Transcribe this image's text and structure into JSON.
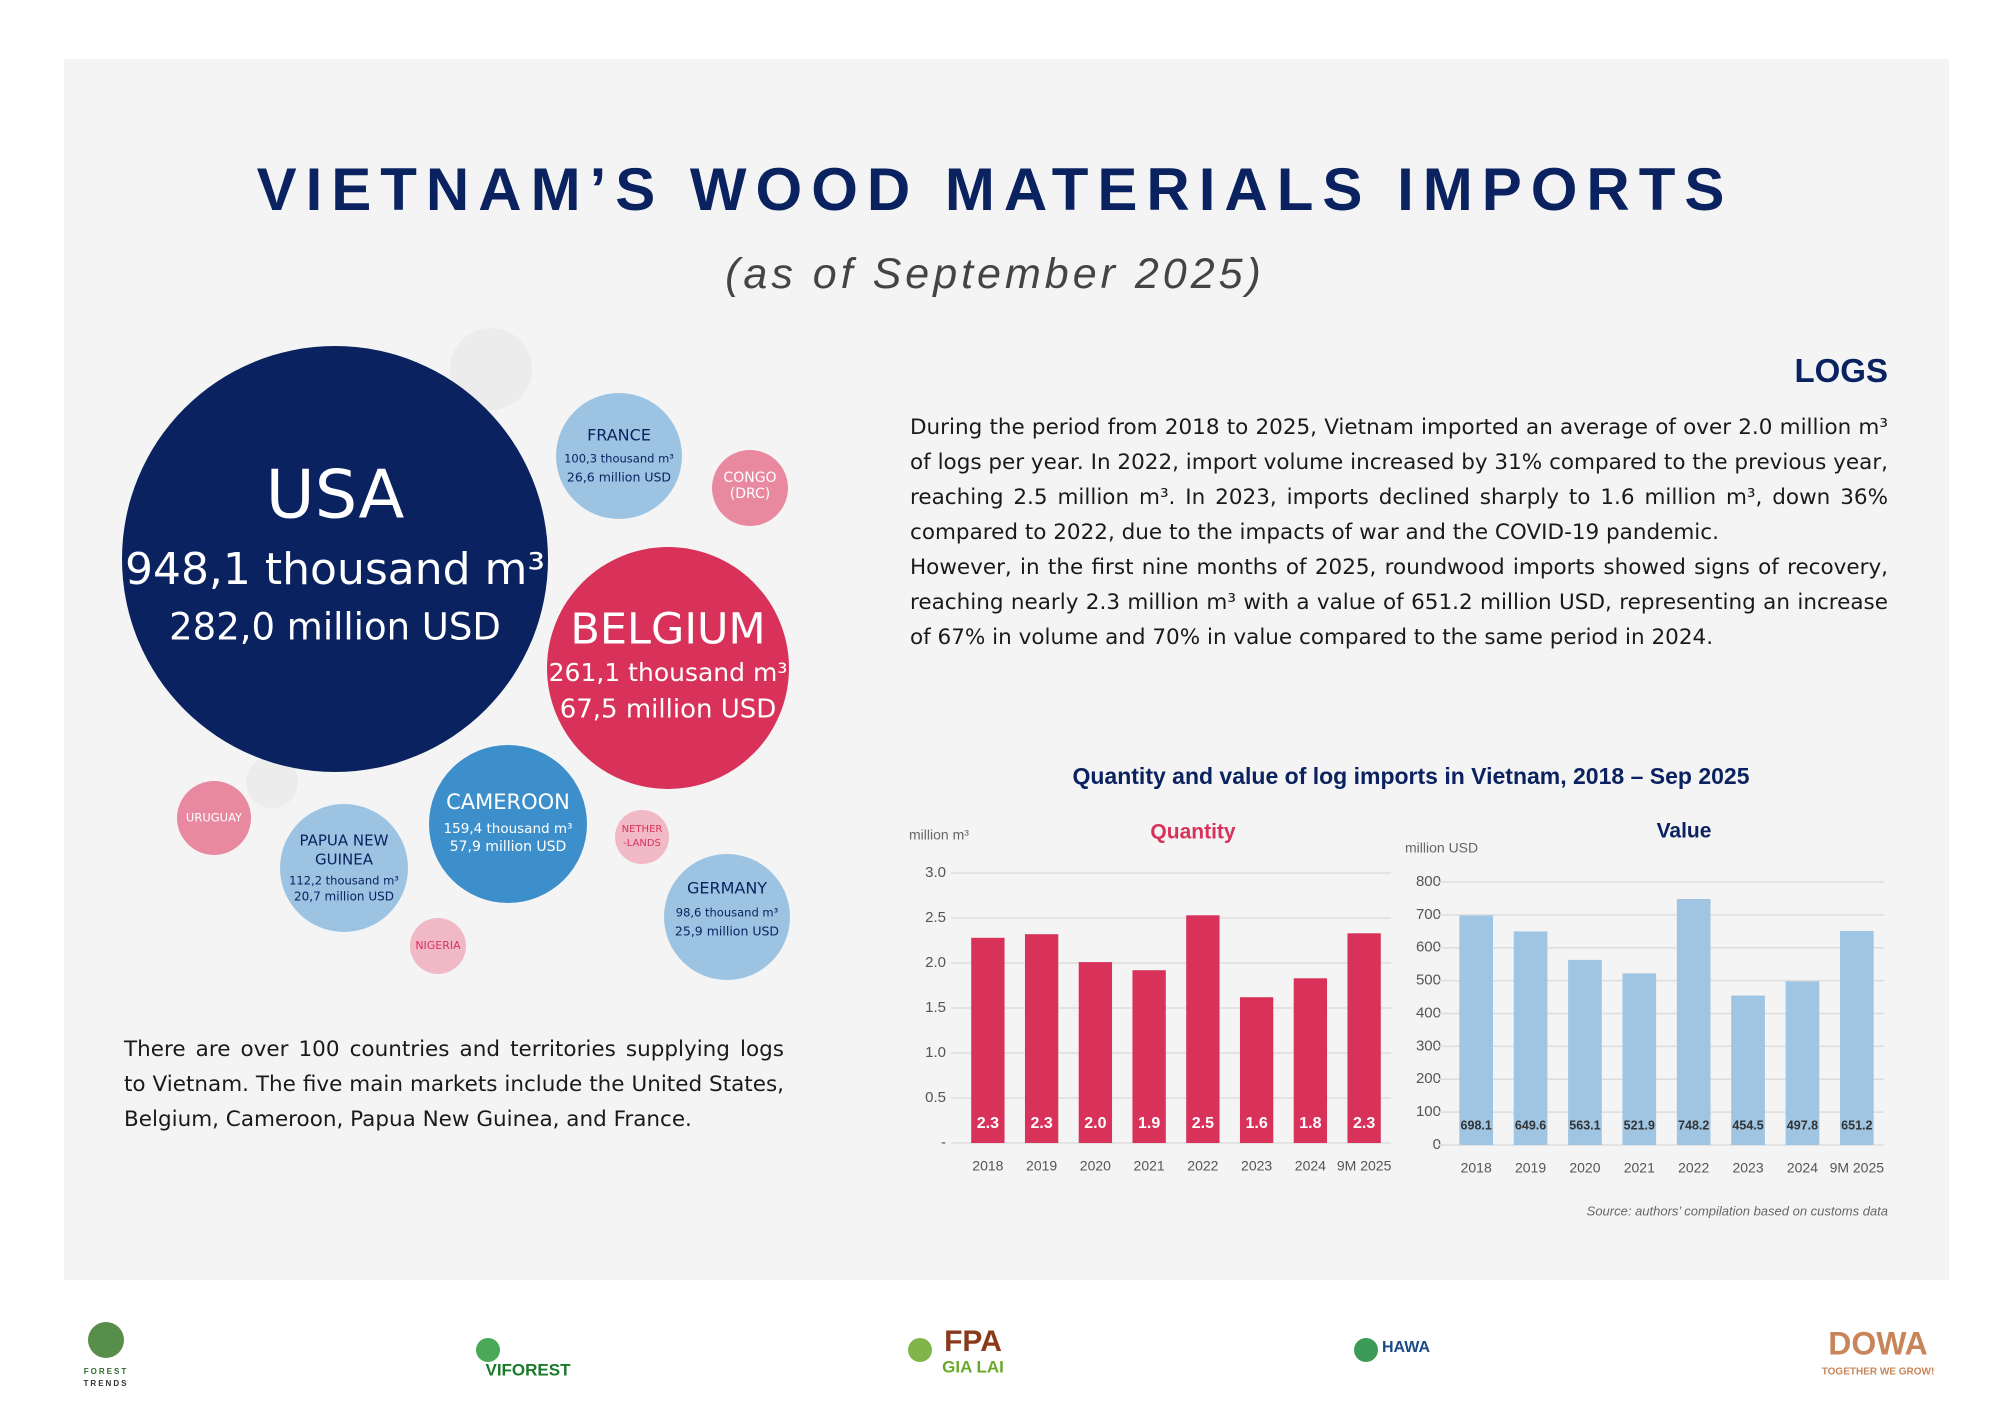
{
  "header": {
    "title": "VIETNAM’S WOOD MATERIALS IMPORTS",
    "subtitle": "(as of September 2025)"
  },
  "bubbles": [
    {
      "lines": [
        "USA",
        "948,1 thousand m³",
        "282,0 million USD"
      ]
    },
    {
      "lines": [
        "BELGIUM",
        "261,1 thousand m³",
        "67,5 million USD"
      ]
    },
    {
      "lines": [
        "FRANCE",
        "100,3 thousand m³",
        "26,6 million USD"
      ]
    },
    {
      "lines": [
        "CONGO",
        "(DRC)"
      ]
    },
    {
      "lines": [
        "CAMEROON",
        "159,4 thousand m³",
        "57,9 million USD"
      ]
    },
    {
      "lines": [
        "PAPUA NEW",
        "GUINEA",
        "112,2 thousand m³",
        "20,7 million USD"
      ]
    },
    {
      "lines": [
        "URUGUAY"
      ]
    },
    {
      "lines": [
        "NIGERIA"
      ]
    },
    {
      "lines": [
        "NETHER",
        "-LANDS"
      ]
    },
    {
      "lines": [
        "GERMANY",
        "98,6 thousand m³",
        "25,9 million USD"
      ]
    }
  ],
  "market_note": "There are over 100 countries and territories supplying logs to Vietnam. The five main markets include the United States, Belgium, Cameroon, Papua New Guinea, and France.",
  "logs": {
    "heading": "LOGS",
    "paragraphs": [
      "During the period from 2018 to 2025, Vietnam imported an average of over 2.0 million m³ of logs per year. In 2022, import volume increased by 31% compared to the previous year, reaching 2.5 million m³. In 2023, imports declined sharply to 1.6 million m³, down 36% compared to 2022, due to the impacts of war and the COVID-19 pandemic.",
      "However, in the first nine months of 2025, roundwood imports showed signs of recovery, reaching nearly 2.3 million m³ with a value of 651.2 million USD, representing an increase of 67% in volume and 70% in value compared to the same period in 2024."
    ]
  },
  "charts_heading": "Quantity and value of log imports in Vietnam, 2018 – Sep 2025",
  "chart_data": [
    {
      "type": "bar",
      "title": "Quantity",
      "y_label": "million m³",
      "categories": [
        "2018",
        "2019",
        "2020",
        "2021",
        "2022",
        "2023",
        "2024",
        "9M 2025"
      ],
      "values": [
        2.28,
        2.32,
        2.01,
        1.92,
        2.53,
        1.62,
        1.83,
        2.33
      ],
      "value_labels": [
        "2.3",
        "2.3",
        "2.0",
        "1.9",
        "2.5",
        "1.6",
        "1.8",
        "2.3"
      ],
      "color": "#d9325a",
      "ylim": [
        0,
        3
      ],
      "yticks": [
        {
          "value": 0,
          "label": "-"
        },
        0.5,
        {
          "value": 1,
          "label": "1.0"
        },
        1.5,
        {
          "value": 2,
          "label": "2.0"
        },
        2.5,
        {
          "value": 3,
          "label": "3.0"
        }
      ],
      "grid": true
    },
    {
      "type": "bar",
      "title": "Value",
      "y_label": "million USD",
      "categories": [
        "2018",
        "2019",
        "2020",
        "2021",
        "2022",
        "2023",
        "2024",
        "9M 2025"
      ],
      "values": [
        698.1,
        649.6,
        563.1,
        521.9,
        748.2,
        454.5,
        497.8,
        651.2
      ],
      "color": "#9fc5e3",
      "ylim": [
        0,
        800
      ],
      "yticks": [
        0,
        100,
        200,
        300,
        400,
        500,
        600,
        700,
        800
      ],
      "grid": true
    }
  ],
  "source": "Source: authors’ compilation based on customs data",
  "logos": [
    {
      "lines": [
        "FOREST",
        "TRENDS"
      ]
    },
    {
      "lines": [
        "VIFOREST"
      ]
    },
    {
      "lines": [
        "FPA",
        "GIA LAI"
      ]
    },
    {
      "lines": [
        "HAWA"
      ]
    },
    {
      "lines": [
        "DOWA",
        "TOGETHER WE GROW!"
      ]
    }
  ]
}
